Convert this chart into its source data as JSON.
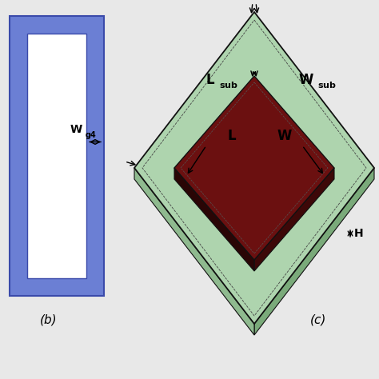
{
  "bg_color": "#e8e8e8",
  "blue_color": "#6b7fd4",
  "blue_border": "#3a4aaa",
  "white_color": "#ffffff",
  "green_top_color": "#aed4ae",
  "green_side_color": "#7aaa7a",
  "green_border": "#111111",
  "dark_red_color": "#6b1010",
  "dark_red_side": "#3d0808",
  "label_b": "(b)",
  "label_c": "(c)"
}
